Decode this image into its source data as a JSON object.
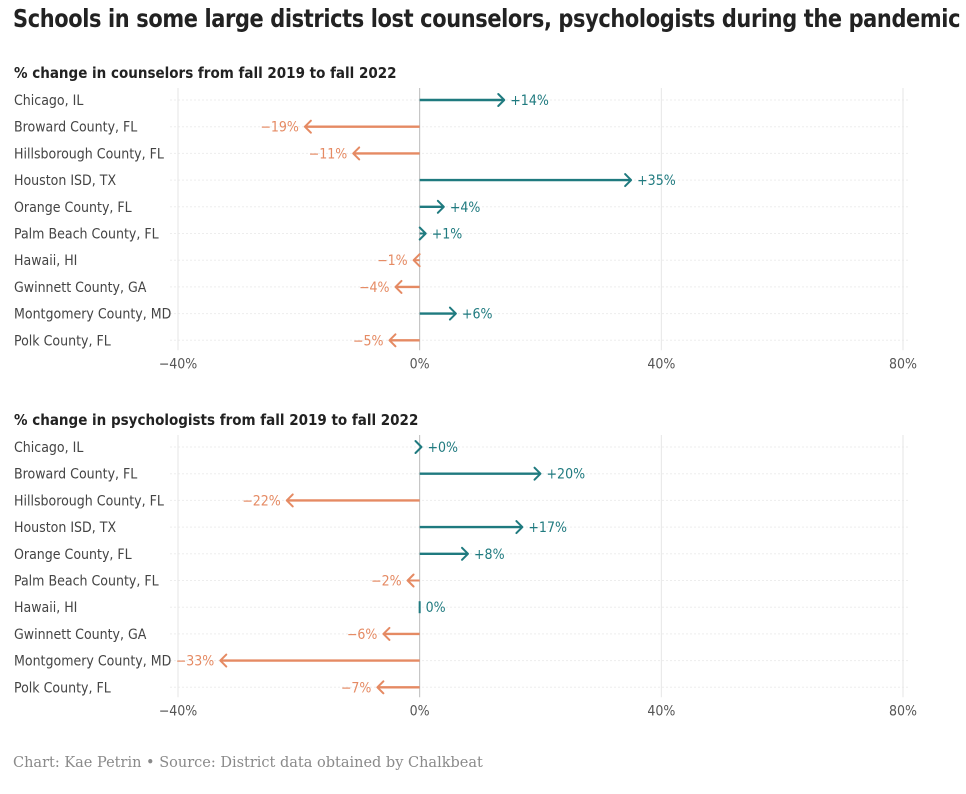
{
  "title": "Schools in some large districts lost counselors, psychologists during the pandemic",
  "caption": "Chart: Kae Petrin • Source: District data obtained by Chalkbeat",
  "colors": {
    "positive": "#1f7a7f",
    "negative": "#e58a63",
    "grid": "#e6e6e6",
    "zero": "#bbbbbb",
    "label": "#444444",
    "tick": "#555555"
  },
  "chart_data": [
    {
      "type": "bar",
      "title": "% change in counselors from fall 2019 to fall 2022",
      "categories": [
        "Chicago, IL",
        "Broward County, FL",
        "Hillsborough County, FL",
        "Houston ISD, TX",
        "Orange County, FL",
        "Palm Beach County, FL",
        "Hawaii, HI",
        "Gwinnett County, GA",
        "Montgomery County, MD",
        "Polk County, FL"
      ],
      "values": [
        14,
        -19,
        -11,
        35,
        4,
        1,
        -1,
        -4,
        6,
        -5
      ],
      "labels": [
        "+14%",
        "−19%",
        "−11%",
        "+35%",
        "+4%",
        "+1%",
        "−1%",
        "−4%",
        "+6%",
        "−5%"
      ],
      "xlim": [
        -40,
        80
      ],
      "xticks": [
        -40,
        0,
        40,
        80
      ],
      "xtick_labels": [
        "−40%",
        "0%",
        "40%",
        "80%"
      ],
      "grid": true
    },
    {
      "type": "bar",
      "title": "% change in psychologists from fall 2019 to fall 2022",
      "categories": [
        "Chicago, IL",
        "Broward County, FL",
        "Hillsborough County, FL",
        "Houston ISD, TX",
        "Orange County, FL",
        "Palm Beach County, FL",
        "Hawaii, HI",
        "Gwinnett County, GA",
        "Montgomery County, MD",
        "Polk County, FL"
      ],
      "values": [
        0.3,
        20,
        -22,
        17,
        8,
        -2,
        0,
        -6,
        -33,
        -7
      ],
      "labels": [
        "+0%",
        "+20%",
        "−22%",
        "+17%",
        "+8%",
        "−2%",
        "0%",
        "−6%",
        "−33%",
        "−7%"
      ],
      "xlim": [
        -40,
        80
      ],
      "xticks": [
        -40,
        0,
        40,
        80
      ],
      "xtick_labels": [
        "−40%",
        "0%",
        "40%",
        "80%"
      ],
      "grid": true
    }
  ]
}
